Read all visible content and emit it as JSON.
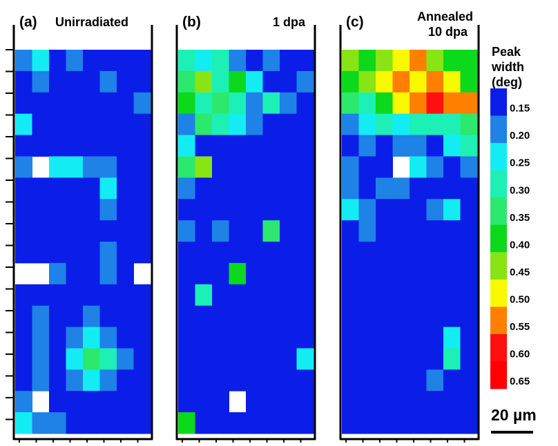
{
  "chart_data": [
    {
      "type": "heatmap",
      "label": "(a)",
      "title_lines": [
        "Unirradiated"
      ],
      "values": [
        [
          0.2,
          0.25,
          0.15,
          0.2,
          0.15,
          0.15,
          0.15,
          0.15
        ],
        [
          0.15,
          0.2,
          0.15,
          0.15,
          0.15,
          0.2,
          0.15,
          0.15
        ],
        [
          0.15,
          0.15,
          0.15,
          0.15,
          0.15,
          0.15,
          0.15,
          0.2
        ],
        [
          0.25,
          0.15,
          0.15,
          0.15,
          0.15,
          0.15,
          0.15,
          0.15
        ],
        [
          0.15,
          0.15,
          0.15,
          0.15,
          0.15,
          0.15,
          0.15,
          0.15
        ],
        [
          0.2,
          null,
          0.25,
          0.25,
          0.2,
          0.2,
          0.15,
          0.15
        ],
        [
          0.15,
          0.15,
          0.15,
          0.15,
          0.15,
          0.25,
          0.15,
          0.15
        ],
        [
          0.15,
          0.15,
          0.15,
          0.15,
          0.15,
          0.2,
          0.15,
          0.15
        ],
        [
          0.15,
          0.15,
          0.15,
          0.15,
          0.15,
          0.15,
          0.15,
          0.15
        ],
        [
          0.15,
          0.15,
          0.15,
          0.15,
          0.15,
          0.2,
          0.15,
          0.15
        ],
        [
          null,
          null,
          0.2,
          0.15,
          0.15,
          0.2,
          0.15,
          null
        ],
        [
          0.15,
          0.15,
          0.15,
          0.15,
          0.15,
          0.15,
          0.15,
          0.15
        ],
        [
          0.15,
          0.2,
          0.15,
          0.15,
          0.2,
          0.15,
          0.15,
          0.15
        ],
        [
          0.15,
          0.2,
          0.15,
          0.2,
          0.25,
          0.2,
          0.15,
          0.15
        ],
        [
          0.15,
          0.2,
          0.15,
          0.25,
          0.35,
          0.3,
          0.2,
          0.15
        ],
        [
          0.15,
          0.2,
          0.15,
          0.2,
          0.25,
          0.2,
          0.15,
          0.15
        ],
        [
          0.2,
          null,
          0.15,
          0.15,
          0.15,
          0.15,
          0.15,
          0.15
        ],
        [
          0.25,
          0.2,
          0.2,
          0.15,
          0.15,
          0.15,
          0.15,
          0.15
        ]
      ]
    },
    {
      "type": "heatmap",
      "label": "(b)",
      "title_lines": [
        "1 dpa"
      ],
      "values": [
        [
          0.3,
          0.25,
          0.3,
          0.2,
          0.15,
          0.2,
          0.15,
          0.15
        ],
        [
          0.35,
          0.45,
          0.3,
          0.4,
          0.25,
          0.15,
          0.15,
          0.2
        ],
        [
          0.4,
          0.3,
          0.35,
          0.3,
          0.2,
          0.3,
          0.2,
          0.15
        ],
        [
          0.2,
          0.35,
          0.3,
          0.25,
          0.2,
          0.15,
          0.15,
          0.15
        ],
        [
          0.25,
          0.15,
          0.15,
          0.15,
          0.15,
          0.15,
          0.15,
          0.15
        ],
        [
          0.35,
          0.45,
          0.15,
          0.15,
          0.15,
          0.15,
          0.15,
          0.15
        ],
        [
          0.2,
          0.15,
          0.15,
          0.15,
          0.15,
          0.15,
          0.15,
          0.15
        ],
        [
          0.15,
          0.15,
          0.15,
          0.15,
          0.15,
          0.15,
          0.15,
          0.15
        ],
        [
          0.2,
          0.15,
          0.2,
          0.15,
          0.15,
          0.35,
          0.15,
          0.15
        ],
        [
          0.15,
          0.15,
          0.15,
          0.15,
          0.15,
          0.15,
          0.15,
          0.15
        ],
        [
          0.15,
          0.15,
          0.15,
          0.4,
          0.15,
          0.15,
          0.15,
          0.15
        ],
        [
          0.15,
          0.3,
          0.15,
          0.15,
          0.15,
          0.15,
          0.15,
          0.15
        ],
        [
          0.15,
          0.15,
          0.15,
          0.15,
          0.15,
          0.15,
          0.15,
          0.15
        ],
        [
          0.15,
          0.15,
          0.15,
          0.15,
          0.15,
          0.15,
          0.15,
          0.15
        ],
        [
          0.15,
          0.15,
          0.15,
          0.15,
          0.15,
          0.15,
          0.15,
          0.25
        ],
        [
          0.15,
          0.15,
          0.15,
          0.15,
          0.15,
          0.15,
          0.15,
          0.15
        ],
        [
          0.15,
          0.15,
          0.15,
          null,
          0.15,
          0.15,
          0.15,
          0.15
        ],
        [
          0.4,
          0.15,
          0.15,
          0.15,
          0.15,
          0.15,
          0.15,
          0.15
        ]
      ]
    },
    {
      "type": "heatmap",
      "label": "(c)",
      "title_lines": [
        "Annealed",
        "10 dpa"
      ],
      "values": [
        [
          0.45,
          0.4,
          0.45,
          0.5,
          0.55,
          0.45,
          0.4,
          0.4
        ],
        [
          0.4,
          0.45,
          0.5,
          0.55,
          0.5,
          0.55,
          0.5,
          0.4
        ],
        [
          0.35,
          0.3,
          0.4,
          0.5,
          0.55,
          0.6,
          0.55,
          0.55
        ],
        [
          0.2,
          0.25,
          0.3,
          0.25,
          0.3,
          0.3,
          0.3,
          0.35
        ],
        [
          0.15,
          0.2,
          0.15,
          0.2,
          0.2,
          0.15,
          0.25,
          0.3
        ],
        [
          0.2,
          0.15,
          0.15,
          null,
          0.25,
          0.2,
          0.15,
          0.2
        ],
        [
          0.2,
          0.15,
          0.2,
          0.2,
          0.15,
          0.15,
          0.15,
          0.15
        ],
        [
          0.25,
          0.2,
          0.15,
          0.15,
          0.15,
          0.2,
          0.25,
          0.15
        ],
        [
          0.15,
          0.2,
          0.15,
          0.15,
          0.15,
          0.15,
          0.15,
          0.15
        ],
        [
          0.15,
          0.15,
          0.15,
          0.15,
          0.15,
          0.15,
          0.15,
          0.15
        ],
        [
          0.15,
          0.15,
          0.15,
          0.15,
          0.15,
          0.15,
          0.15,
          0.15
        ],
        [
          0.15,
          0.15,
          0.15,
          0.15,
          0.15,
          0.15,
          0.15,
          0.15
        ],
        [
          0.15,
          0.15,
          0.15,
          0.15,
          0.15,
          0.15,
          0.15,
          0.15
        ],
        [
          0.15,
          0.15,
          0.15,
          0.15,
          0.15,
          0.15,
          0.25,
          0.15
        ],
        [
          0.15,
          0.15,
          0.15,
          0.15,
          0.15,
          0.15,
          0.3,
          0.15
        ],
        [
          0.15,
          0.15,
          0.15,
          0.15,
          0.15,
          0.2,
          0.15,
          0.15
        ],
        [
          0.15,
          0.15,
          0.15,
          0.15,
          0.15,
          0.15,
          0.15,
          0.15
        ],
        [
          0.15,
          0.15,
          0.15,
          0.15,
          0.15,
          0.15,
          0.15,
          0.15
        ]
      ]
    }
  ],
  "colorbar": {
    "title_lines": [
      "Peak",
      "width",
      "(deg)"
    ],
    "ticks": [
      0.15,
      {
        "value": 0.2,
        "label": "0.20"
      },
      0.25,
      {
        "value": 0.3,
        "label": "0.30"
      },
      0.35,
      {
        "value": 0.4,
        "label": "0.40"
      },
      0.45,
      {
        "value": 0.5,
        "label": "0.50"
      },
      0.55,
      {
        "value": 0.6,
        "label": "0.60"
      },
      0.65
    ],
    "colors": [
      "#0a1ee8",
      "#1e82e6",
      "#14ecf4",
      "#1cf0b4",
      "#2ce86c",
      "#0cd81c",
      "#88e414",
      "#f8f800",
      "#ff8000",
      "#ff1010",
      "#ff0000"
    ]
  },
  "scale_bar": {
    "label": "20 µm"
  }
}
